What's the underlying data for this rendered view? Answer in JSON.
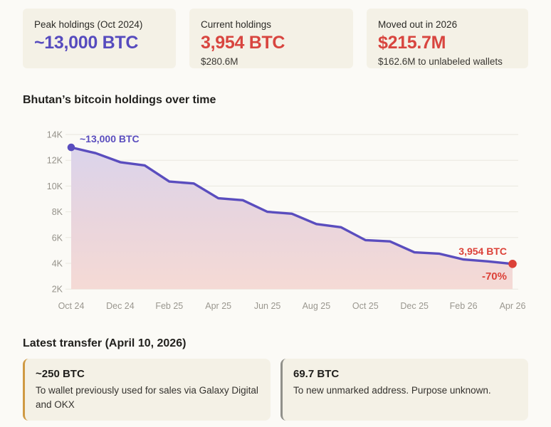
{
  "stats": [
    {
      "label": "Peak holdings (Oct 2024)",
      "value": "~13,000 BTC",
      "value_color": "#564bbe"
    },
    {
      "label": "Current holdings",
      "value": "3,954 BTC",
      "value_color": "#d8453f",
      "sub": "$280.6M"
    },
    {
      "label": "Moved out in 2026",
      "value": "$215.7M",
      "value_color": "#d8453f",
      "sub": "$162.6M to unlabeled wallets"
    }
  ],
  "chart_data": {
    "type": "area",
    "title": "Bhutan’s bitcoin holdings over time",
    "x_labels": [
      "Oct 24",
      "Dec 24",
      "Feb 25",
      "Apr 25",
      "Jun 25",
      "Aug 25",
      "Oct 25",
      "Dec 25",
      "Feb 26",
      "Apr 26"
    ],
    "months_per_label": 2,
    "series": [
      {
        "name": "BTC holdings",
        "values": [
          13000,
          12550,
          11850,
          11600,
          10350,
          10200,
          9050,
          8900,
          8000,
          7850,
          7050,
          6800,
          5800,
          5700,
          4850,
          4750,
          4300,
          4150,
          3954
        ]
      }
    ],
    "ylim": [
      2000,
      14000
    ],
    "yticks": [
      14000,
      12000,
      10000,
      8000,
      6000,
      4000,
      2000
    ],
    "ytick_labels": [
      "14K",
      "12K",
      "10K",
      "8K",
      "6K",
      "4K",
      "2K"
    ],
    "grid": "horizontal",
    "legend": "none",
    "annotations": {
      "start": "~13,000 BTC",
      "end": "3,954 BTC",
      "end_pct": "-70%"
    },
    "line_color": "#5a4dbe",
    "end_color": "#dc4138",
    "fill_top": "#d8d4ee",
    "fill_mid": "#e9d5dd",
    "fill_bottom": "#f5dad5"
  },
  "latest_transfer": {
    "heading": "Latest transfer (April 10, 2026)",
    "items": [
      {
        "amount": "~250 BTC",
        "description": "To wallet previously used for sales via Galaxy Digital and OKX",
        "accent": "#cf9a43"
      },
      {
        "amount": "69.7 BTC",
        "description": "To new unmarked address. Purpose unknown.",
        "accent": "#90908a"
      }
    ]
  }
}
